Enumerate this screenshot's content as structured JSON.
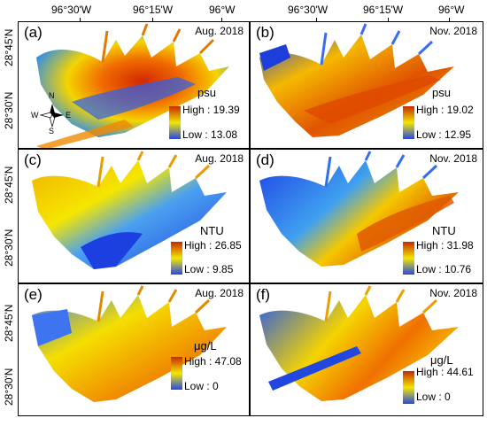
{
  "axes": {
    "lon_ticks": [
      "96°30'W",
      "96°15'W",
      "96°W"
    ],
    "lat_ticks": [
      "28°45'N",
      "28°30'N"
    ]
  },
  "compass": {
    "n": "N",
    "s": "S",
    "e": "E",
    "w": "W"
  },
  "colors": {
    "colorbar_high": "#c62a00",
    "colorbar_mid": "#f2e600",
    "colorbar_low": "#2448e8",
    "land": "#ffffff"
  },
  "panels": [
    {
      "id": "a",
      "label": "(a)",
      "date": "Aug. 2018",
      "unit": "psu",
      "high": "High : 19.39",
      "low": "Low : 13.08"
    },
    {
      "id": "b",
      "label": "(b)",
      "date": "Nov. 2018",
      "unit": "psu",
      "high": "High : 19.02",
      "low": "Low : 12.95"
    },
    {
      "id": "c",
      "label": "(c)",
      "date": "Aug. 2018",
      "unit": "NTU",
      "high": "High : 26.85",
      "low": "Low : 9.85"
    },
    {
      "id": "d",
      "label": "(d)",
      "date": "Nov. 2018",
      "unit": "NTU",
      "high": "High : 31.98",
      "low": "Low : 10.76"
    },
    {
      "id": "e",
      "label": "(e)",
      "date": "Aug. 2018",
      "unit": "μg/L",
      "high": "High : 47.08",
      "low": "Low : 0"
    },
    {
      "id": "f",
      "label": "(f)",
      "date": "Nov. 2018",
      "unit": "μg/L",
      "high": "High : 44.61",
      "low": "Low : 0"
    }
  ]
}
